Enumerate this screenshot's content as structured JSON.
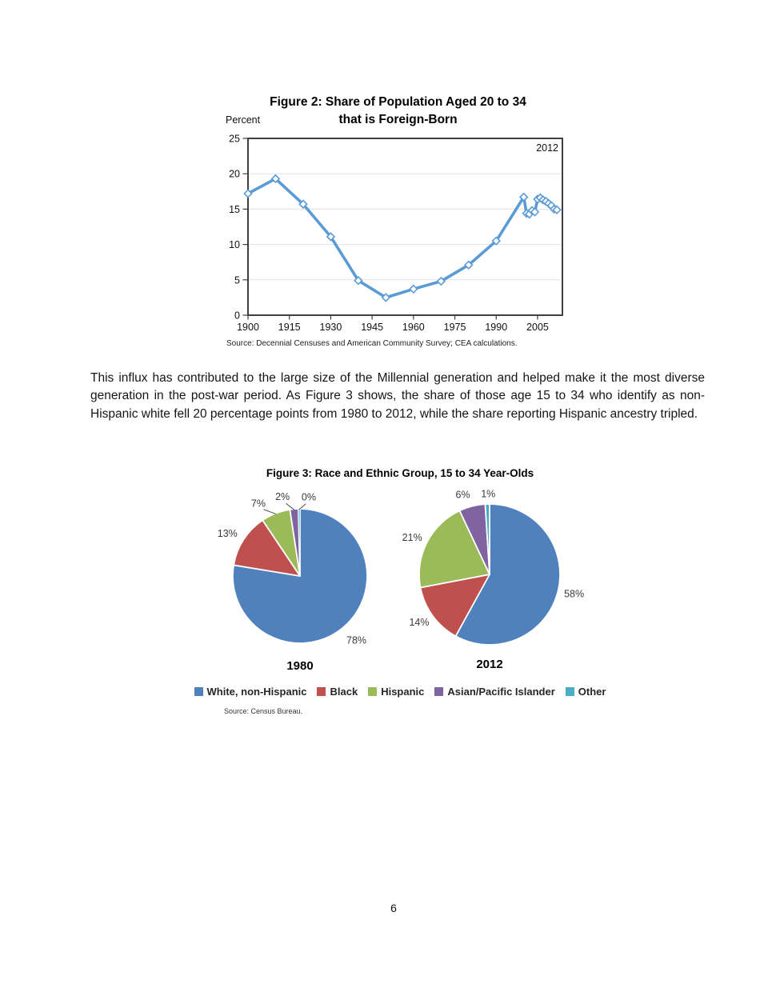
{
  "page": {
    "number": "6"
  },
  "figure2": {
    "title_line1": "Figure 2: Share of Population Aged 20 to 34",
    "title_line2": "that is Foreign-Born",
    "y_axis_unit": "Percent",
    "annotation": "2012",
    "source": "Source: Decennial Censuses and American Community Survey; CEA calculations.",
    "chart_data": {
      "type": "line",
      "title": "Figure 2: Share of Population Aged 20 to 34 that is Foreign-Born",
      "xlabel": "",
      "ylabel": "Percent",
      "x": [
        1900,
        1910,
        1920,
        1930,
        1940,
        1950,
        1960,
        1970,
        1980,
        1990,
        2000,
        2001,
        2002,
        2003,
        2004,
        2005,
        2006,
        2007,
        2008,
        2009,
        2010,
        2011,
        2012
      ],
      "series": [
        {
          "name": "Share of population aged 20 to 34 that is foreign-born (percent)",
          "values": [
            17.2,
            19.3,
            15.7,
            11.1,
            4.9,
            2.5,
            3.7,
            4.8,
            7.1,
            10.5,
            16.7,
            14.4,
            14.3,
            14.8,
            14.6,
            16.4,
            16.6,
            16.3,
            16.1,
            15.8,
            15.5,
            15.0,
            14.9
          ]
        }
      ],
      "xlim": [
        1900,
        2014
      ],
      "ylim": [
        0,
        25
      ],
      "xticks": [
        1900,
        1915,
        1930,
        1945,
        1960,
        1975,
        1990,
        2005
      ],
      "yticks": [
        0,
        5,
        10,
        15,
        20,
        25
      ],
      "grid": "horizontal",
      "legend_position": "none",
      "line_color": "#5B9BD5",
      "marker": "open-diamond"
    }
  },
  "body_text": {
    "paragraph": "This influx has contributed to the large size of the Millennial generation and helped make it the most diverse generation in the post-war period. As Figure 3 shows, the share of those age 15 to 34 who identify as non-Hispanic white fell 20 percentage points from 1980 to 2012, while the share reporting Hispanic ancestry tripled."
  },
  "figure3": {
    "title": "Figure 3: Race and Ethnic Group, 15 to 34 Year-Olds",
    "source": "Source: Census Bureau.",
    "legend": [
      {
        "label": "White, non-Hispanic",
        "color": "#4F81BD"
      },
      {
        "label": "Black",
        "color": "#C0504D"
      },
      {
        "label": "Hispanic",
        "color": "#9BBB59"
      },
      {
        "label": "Asian/Pacific Islander",
        "color": "#8064A2"
      },
      {
        "label": "Other",
        "color": "#4BACC6"
      }
    ],
    "chart_data": [
      {
        "type": "pie",
        "title": "1980",
        "categories": [
          "White, non-Hispanic",
          "Black",
          "Hispanic",
          "Asian/Pacific Islander",
          "Other"
        ],
        "values": [
          78,
          13,
          7,
          2,
          0
        ],
        "data_labels": [
          "78%",
          "13%",
          "7%",
          "2%",
          "0%"
        ],
        "colors": [
          "#4F81BD",
          "#C0504D",
          "#9BBB59",
          "#8064A2",
          "#4BACC6"
        ],
        "render_values": [
          77.6,
          13,
          7,
          2,
          0.4
        ],
        "label_pos": [
          [
            0.84,
            0.96
          ],
          [
            -1.08,
            -0.63
          ],
          [
            -0.62,
            -1.08
          ],
          [
            -0.26,
            -1.18
          ],
          [
            0.13,
            -1.17
          ]
        ],
        "leaders": [
          false,
          false,
          true,
          true,
          true
        ],
        "start_angle": "12-oclock-clockwise"
      },
      {
        "type": "pie",
        "title": "2012",
        "categories": [
          "White, non-Hispanic",
          "Black",
          "Hispanic",
          "Asian/Pacific Islander",
          "Other"
        ],
        "values": [
          58,
          14,
          21,
          6,
          1
        ],
        "data_labels": [
          "58%",
          "14%",
          "21%",
          "6%",
          "1%"
        ],
        "colors": [
          "#4F81BD",
          "#C0504D",
          "#9BBB59",
          "#8064A2",
          "#4BACC6"
        ],
        "render_values": [
          58,
          14,
          21,
          6,
          1
        ],
        "label_pos": [
          [
            1.2,
            0.28
          ],
          [
            -1.0,
            0.68
          ],
          [
            -1.1,
            -0.52
          ],
          [
            -0.38,
            -1.13
          ],
          [
            -0.02,
            -1.14
          ]
        ],
        "leaders": [
          false,
          false,
          false,
          false,
          false
        ],
        "start_angle": "12-oclock-clockwise"
      }
    ]
  }
}
